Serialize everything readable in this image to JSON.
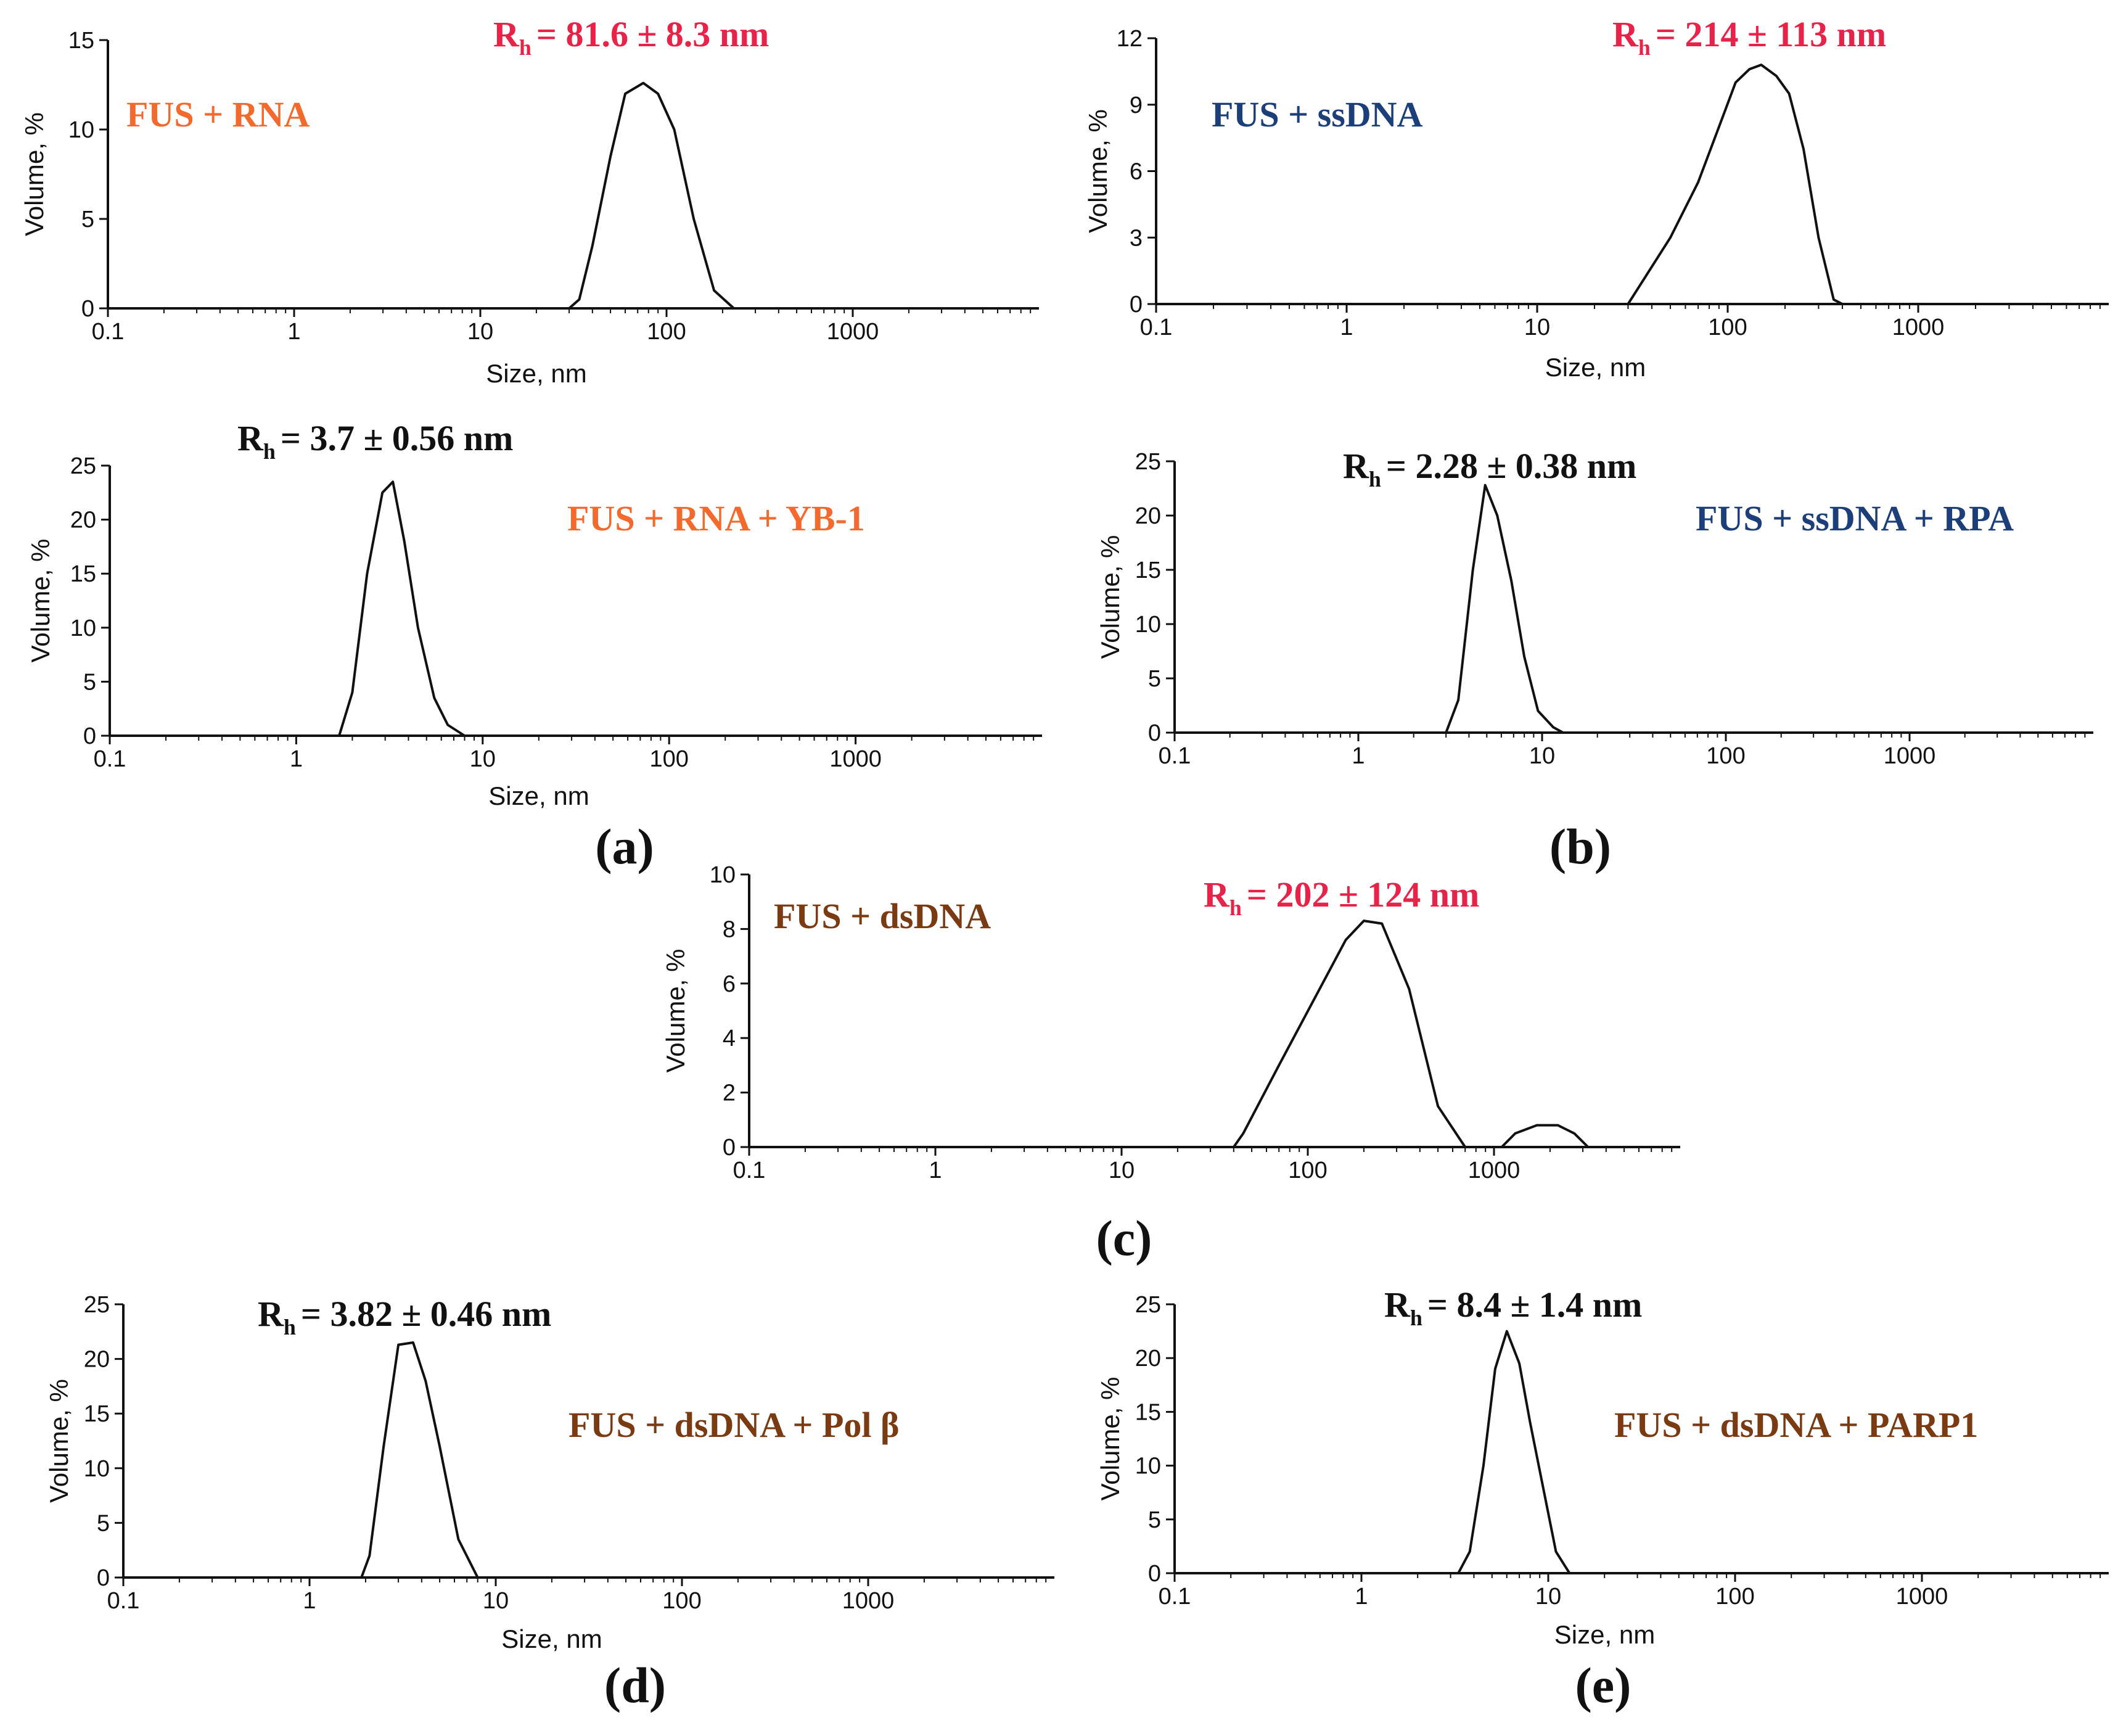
{
  "colors": {
    "rna": "#f26a2e",
    "ssdna": "#1c3f7a",
    "dsdna": "#7a3a12",
    "rh_red": "#e8234a",
    "black": "#111111"
  },
  "chart_data": [
    {
      "id": "a_top",
      "type": "line",
      "title": "",
      "sample_label": "FUS + RNA",
      "label_color": "rna",
      "rh": {
        "prefix": "R",
        "sub": "h",
        "text": "= 81.6 ± 8.3 nm",
        "color": "rh_red"
      },
      "xlabel": "Size, nm",
      "ylabel": "Volume, %",
      "xscale": "log",
      "xlim": [
        0.1,
        10000
      ],
      "ylim": [
        0,
        15
      ],
      "xticks": [
        "0.1",
        "1",
        "10",
        "100",
        "1000"
      ],
      "yticks": [
        "0",
        "5",
        "10",
        "15"
      ],
      "x": [
        0.18,
        30,
        34,
        40,
        50,
        60,
        75,
        90,
        110,
        140,
        180,
        230,
        10000
      ],
      "y": [
        0,
        0,
        0.5,
        3.5,
        8.5,
        12.0,
        12.6,
        12.0,
        10.0,
        5.0,
        1.0,
        0,
        0
      ]
    },
    {
      "id": "b_top",
      "type": "line",
      "title": "",
      "sample_label": "FUS + ssDNA",
      "label_color": "ssdna",
      "rh": {
        "prefix": "R",
        "sub": "h",
        "text": "= 214 ± 113 nm",
        "color": "rh_red"
      },
      "xlabel": "Size, nm",
      "ylabel": "Volume, %",
      "xscale": "log",
      "xlim": [
        0.1,
        10000
      ],
      "ylim": [
        0,
        12
      ],
      "xticks": [
        "0.1",
        "1",
        "10",
        "100",
        "1000"
      ],
      "yticks": [
        "0",
        "3",
        "6",
        "9",
        "12"
      ],
      "x": [
        30,
        50,
        70,
        90,
        110,
        130,
        150,
        180,
        210,
        250,
        300,
        360,
        400,
        10000
      ],
      "y": [
        0,
        3.0,
        5.5,
        8.0,
        10.0,
        10.6,
        10.8,
        10.3,
        9.5,
        7.0,
        3.0,
        0.2,
        0,
        0
      ]
    },
    {
      "id": "a_bottom",
      "type": "line",
      "title": "",
      "sample_label": "FUS + RNA + YB-1",
      "label_color": "rna",
      "rh": {
        "prefix": "R",
        "sub": "h",
        "text": "= 3.7 ± 0.56 nm",
        "color": "black"
      },
      "xlabel": "Size, nm",
      "ylabel": "Volume, %",
      "xscale": "log",
      "xlim": [
        0.1,
        10000
      ],
      "ylim": [
        0,
        25
      ],
      "xticks": [
        "0.1",
        "1",
        "10",
        "100",
        "1000"
      ],
      "yticks": [
        "0",
        "5",
        "10",
        "15",
        "20",
        "25"
      ],
      "x": [
        0.1,
        1.7,
        2.0,
        2.4,
        2.9,
        3.3,
        3.8,
        4.5,
        5.5,
        6.5,
        8.0,
        10000
      ],
      "y": [
        0,
        0,
        4.0,
        15.0,
        22.5,
        23.5,
        18.0,
        10.0,
        3.5,
        1.0,
        0,
        0
      ]
    },
    {
      "id": "b_bottom",
      "type": "line",
      "title": "",
      "sample_label": "FUS + ssDNA + RPA",
      "label_color": "ssdna",
      "rh": {
        "prefix": "R",
        "sub": "h",
        "text": "= 2.28 ± 0.38 nm",
        "color": "black"
      },
      "xlabel": "",
      "ylabel": "Volume, %",
      "xscale": "log",
      "xlim": [
        0.1,
        10000
      ],
      "ylim": [
        0,
        25
      ],
      "xticks": [
        "0.1",
        "1",
        "10",
        "100",
        "1000"
      ],
      "yticks": [
        "0",
        "5",
        "10",
        "15",
        "20",
        "25"
      ],
      "x": [
        0.1,
        3.0,
        3.5,
        4.2,
        4.9,
        5.7,
        6.8,
        8.0,
        9.5,
        11.5,
        13.0,
        10000
      ],
      "y": [
        0,
        0,
        3.0,
        15.0,
        22.8,
        20.0,
        14.0,
        7.0,
        2.0,
        0.5,
        0,
        0
      ]
    },
    {
      "id": "c",
      "type": "line",
      "title": "",
      "sample_label": "FUS + dsDNA",
      "label_color": "dsdna",
      "rh": {
        "prefix": "R",
        "sub": "h",
        "text": "= 202 ± 124 nm",
        "color": "rh_red"
      },
      "xlabel": "",
      "ylabel": "Volume, %",
      "xscale": "log",
      "xlim": [
        0.1,
        10000
      ],
      "ylim": [
        0,
        10
      ],
      "xticks": [
        "0.1",
        "1",
        "10",
        "100",
        "1000"
      ],
      "yticks": [
        "0",
        "2",
        "4",
        "6",
        "8",
        "10"
      ],
      "x": [
        0.1,
        40,
        45,
        70,
        120,
        160,
        200,
        250,
        350,
        500,
        700,
        1100,
        1300,
        1700,
        2200,
        2700,
        3200,
        10000
      ],
      "y": [
        0,
        0,
        0.5,
        3.0,
        6.0,
        7.6,
        8.3,
        8.2,
        5.8,
        1.5,
        0,
        0,
        0.5,
        0.8,
        0.8,
        0.5,
        0,
        0
      ]
    },
    {
      "id": "d",
      "type": "line",
      "title": "",
      "sample_label": "FUS + dsDNA + Pol β",
      "label_color": "dsdna",
      "rh": {
        "prefix": "R",
        "sub": "h",
        "text": "= 3.82 ± 0.46 nm",
        "color": "black"
      },
      "xlabel": "Size, nm",
      "ylabel": "Volume, %",
      "xscale": "log",
      "xlim": [
        0.1,
        10000
      ],
      "ylim": [
        0,
        25
      ],
      "xticks": [
        "0.1",
        "1",
        "10",
        "100",
        "1000"
      ],
      "yticks": [
        "0",
        "5",
        "10",
        "15",
        "20",
        "25"
      ],
      "x": [
        0.1,
        1.9,
        2.1,
        2.5,
        3.0,
        3.6,
        4.2,
        5.0,
        6.3,
        8.0,
        10000
      ],
      "y": [
        0,
        0,
        2.0,
        12.0,
        21.3,
        21.5,
        18.0,
        12.0,
        3.5,
        0,
        0
      ]
    },
    {
      "id": "e",
      "type": "line",
      "title": "",
      "sample_label": "FUS + dsDNA + PARP1",
      "label_color": "dsdna",
      "rh": {
        "prefix": "R",
        "sub": "h",
        "text": "= 8.4 ± 1.4 nm",
        "color": "black"
      },
      "xlabel": "Size, nm",
      "ylabel": "Volume, %",
      "xscale": "log",
      "xlim": [
        0.1,
        10000
      ],
      "ylim": [
        0,
        25
      ],
      "xticks": [
        "0.1",
        "1",
        "10",
        "100",
        "1000"
      ],
      "yticks": [
        "0",
        "5",
        "10",
        "15",
        "20",
        "25"
      ],
      "x": [
        0.1,
        3.3,
        3.8,
        4.5,
        5.2,
        6.0,
        7.0,
        8.0,
        9.5,
        11.0,
        13.0,
        10000
      ],
      "y": [
        0,
        0,
        2.0,
        10.0,
        19.0,
        22.5,
        19.5,
        14.0,
        7.5,
        2.0,
        0,
        0
      ]
    }
  ],
  "panel_letters": [
    "(a)",
    "(b)",
    "(c)",
    "(d)",
    "(e)"
  ]
}
